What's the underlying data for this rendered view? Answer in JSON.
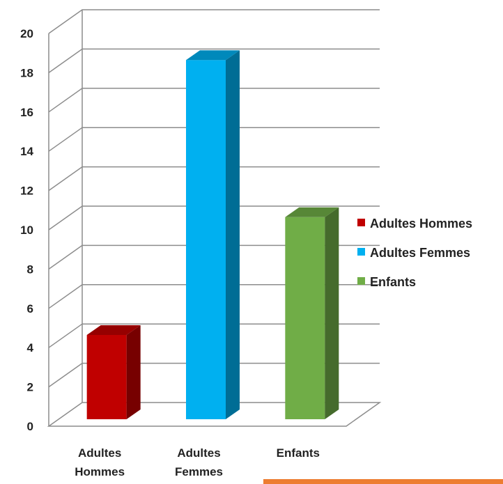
{
  "chart_data": {
    "type": "bar",
    "style": "3d-column",
    "categories": [
      [
        "Adultes",
        "Hommes"
      ],
      [
        "Adultes",
        "Femmes"
      ],
      [
        "Enfants"
      ]
    ],
    "series": [
      {
        "name": "Adultes Hommes",
        "values": [
          5,
          null,
          null
        ],
        "color": "#c00000"
      },
      {
        "name": "Adultes Femmes",
        "values": [
          null,
          19,
          null
        ],
        "color": "#00b0f0"
      },
      {
        "name": "Enfants",
        "values": [
          null,
          null,
          11
        ],
        "color": "#70ad47"
      }
    ],
    "yticks": [
      "0",
      "2",
      "4",
      "6",
      "8",
      "10",
      "12",
      "14",
      "16",
      "18",
      "20"
    ],
    "ylim": [
      0,
      20
    ],
    "grid": true,
    "legend": "right",
    "title": "",
    "xlabel": "",
    "ylabel": ""
  }
}
